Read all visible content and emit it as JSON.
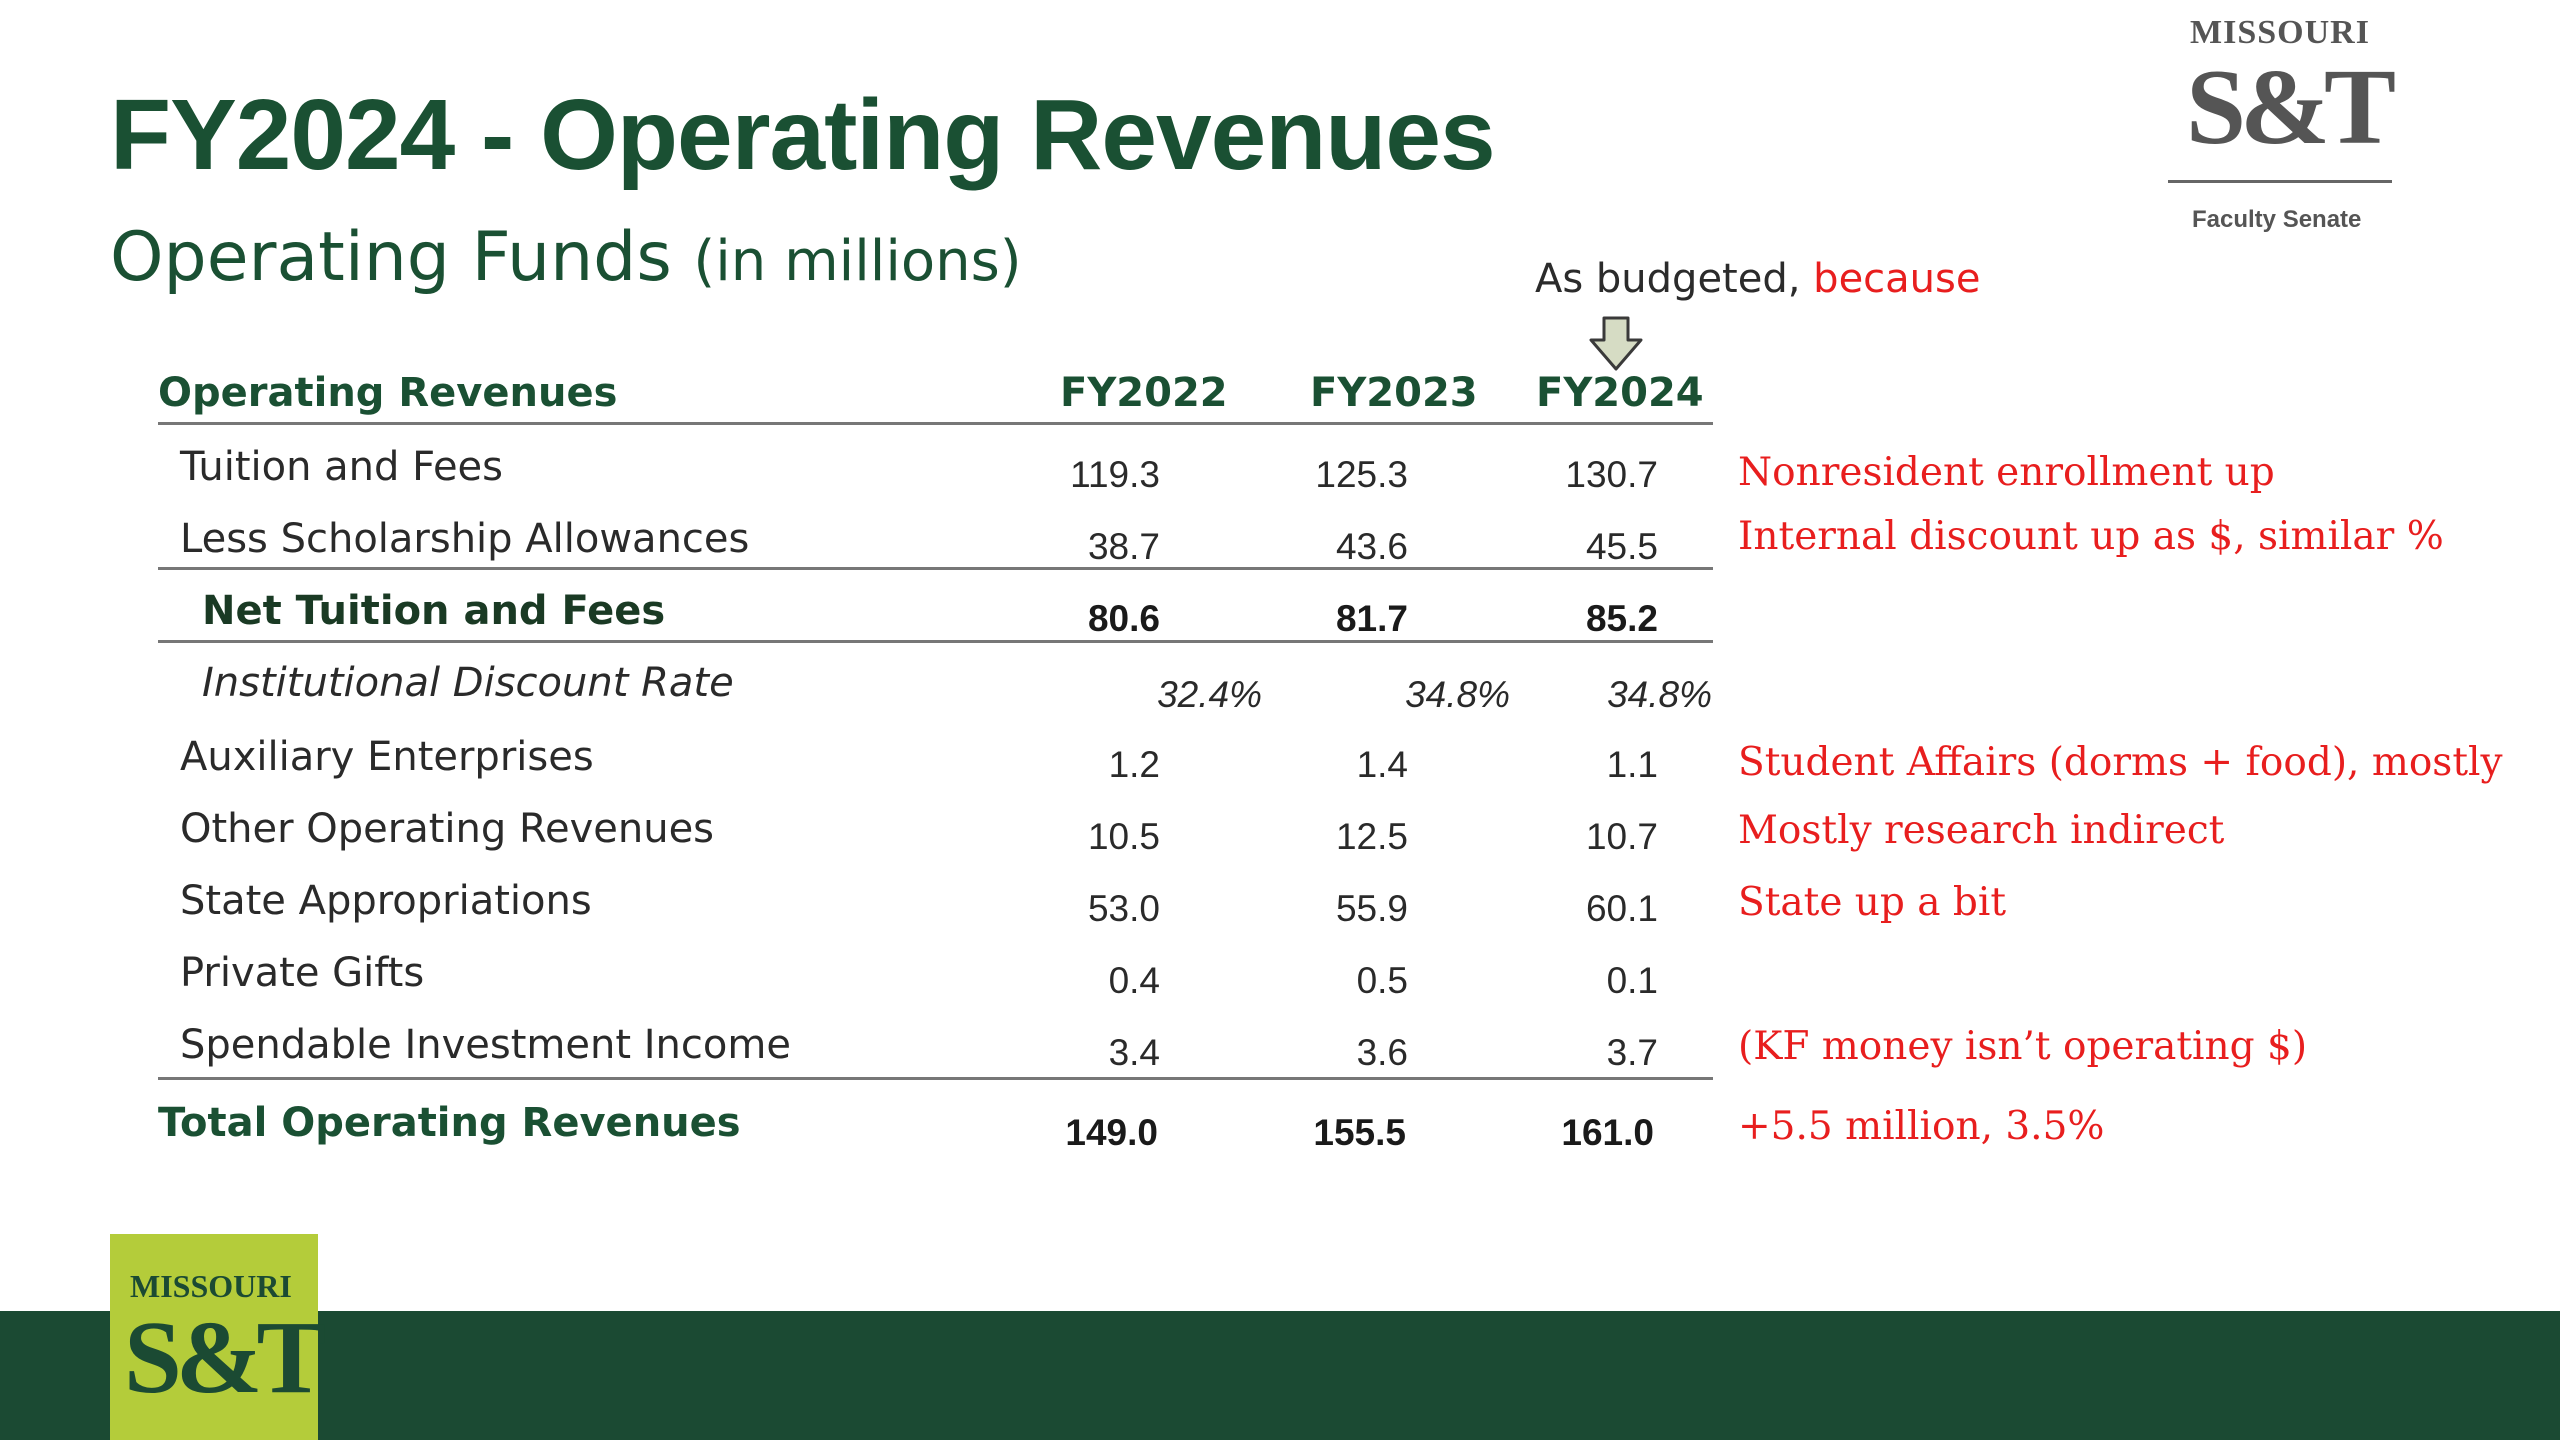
{
  "header": {
    "title": "FY2024 - Operating Revenues",
    "subtitle_main": "Operating Funds",
    "subtitle_unit": "(in millions)"
  },
  "annotation": {
    "prefix": "As budgeted, ",
    "highlight": "because"
  },
  "logo_top": {
    "line1": "MISSOURI",
    "line2": "S&T",
    "caption": "Faculty Senate"
  },
  "logo_bottom": {
    "line1": "MISSOURI",
    "line2": "S&T"
  },
  "table": {
    "label_header": "Operating Revenues",
    "columns": [
      "FY2022",
      "FY2023",
      "FY2024"
    ],
    "rows": [
      {
        "label": "Tuition and Fees",
        "values": [
          "119.3",
          "125.3",
          "130.7"
        ],
        "comment": "Nonresident enrollment up"
      },
      {
        "label": "Less Scholarship Allowances",
        "values": [
          "38.7",
          "43.6",
          "45.5"
        ],
        "comment": "Internal discount up as $, similar %"
      },
      {
        "label": "Net Tuition and Fees",
        "values": [
          "80.6",
          "81.7",
          "85.2"
        ],
        "comment": ""
      },
      {
        "label": "Institutional Discount Rate",
        "values": [
          "32.4%",
          "34.8%",
          "34.8%"
        ],
        "comment": ""
      },
      {
        "label": "Auxiliary Enterprises",
        "values": [
          "1.2",
          "1.4",
          "1.1"
        ],
        "comment": "Student Affairs (dorms + food), mostly"
      },
      {
        "label": "Other Operating Revenues",
        "values": [
          "10.5",
          "12.5",
          "10.7"
        ],
        "comment": "Mostly research indirect"
      },
      {
        "label": "State Appropriations",
        "values": [
          "53.0",
          "55.9",
          "60.1"
        ],
        "comment": "State up a bit"
      },
      {
        "label": "Private Gifts",
        "values": [
          "0.4",
          "0.5",
          "0.1"
        ],
        "comment": ""
      },
      {
        "label": "Spendable Investment Income",
        "values": [
          "3.4",
          "3.6",
          "3.7"
        ],
        "comment": "(KF money isn’t operating $)"
      },
      {
        "label": "Total Operating Revenues",
        "values": [
          "149.0",
          "155.5",
          "161.0"
        ],
        "comment": "+5.5 million, 3.5%"
      }
    ]
  }
}
